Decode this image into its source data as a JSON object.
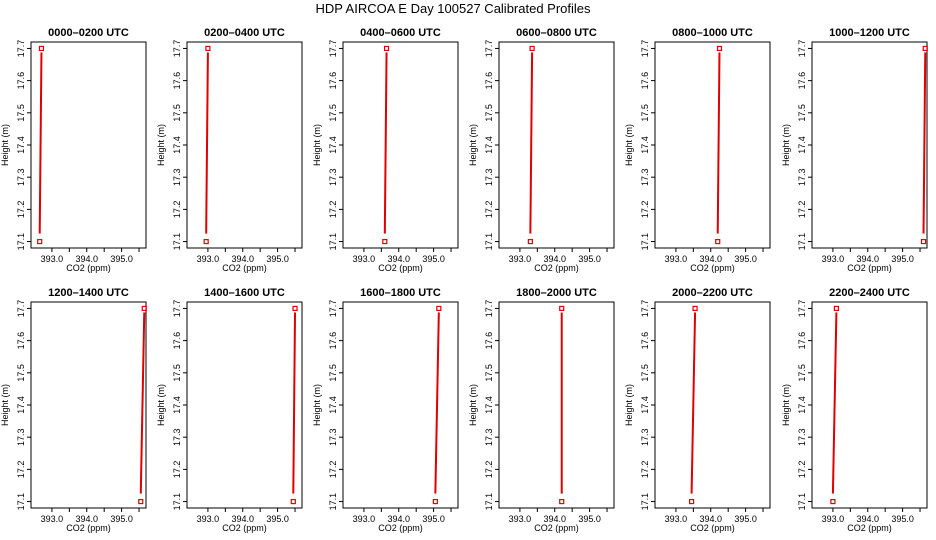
{
  "figure": {
    "title": "HDP AIRCOA E  Day 100527  Calibrated Profiles"
  },
  "chart_data": {
    "type": "line",
    "title": "HDP AIRCOA E  Day 100527  Calibrated Profiles",
    "xlabel": "CO2 (ppm)",
    "ylabel": "Height (m)",
    "xlim": [
      392.4,
      395.7
    ],
    "ylim": [
      17.08,
      17.72
    ],
    "xticks": [
      "393.0",
      "394.0",
      "395.0"
    ],
    "yticks": [
      "17.1",
      "17.2",
      "17.3",
      "17.4",
      "17.5",
      "17.6",
      "17.7"
    ],
    "line_color": "#e00000",
    "heights": [
      17.1,
      17.7
    ],
    "panels": [
      {
        "title": "0000–0200 UTC",
        "co2": [
          392.65,
          392.7
        ]
      },
      {
        "title": "0200–0400 UTC",
        "co2": [
          392.95,
          393.0
        ]
      },
      {
        "title": "0400–0600 UTC",
        "co2": [
          393.6,
          393.65
        ]
      },
      {
        "title": "0600–0800 UTC",
        "co2": [
          393.3,
          393.35
        ]
      },
      {
        "title": "0800–1000 UTC",
        "co2": [
          394.2,
          394.25
        ]
      },
      {
        "title": "1000–1200 UTC",
        "co2": [
          395.6,
          395.65
        ]
      },
      {
        "title": "1200–1400 UTC",
        "co2": [
          395.55,
          395.65
        ]
      },
      {
        "title": "1400–1600 UTC",
        "co2": [
          395.45,
          395.5
        ]
      },
      {
        "title": "1600–1800 UTC",
        "co2": [
          395.05,
          395.15
        ]
      },
      {
        "title": "1800–2000 UTC",
        "co2": [
          394.2,
          394.2
        ]
      },
      {
        "title": "2000–2200 UTC",
        "co2": [
          393.45,
          393.55
        ]
      },
      {
        "title": "2200–2400 UTC",
        "co2": [
          393.0,
          393.1
        ]
      }
    ]
  }
}
